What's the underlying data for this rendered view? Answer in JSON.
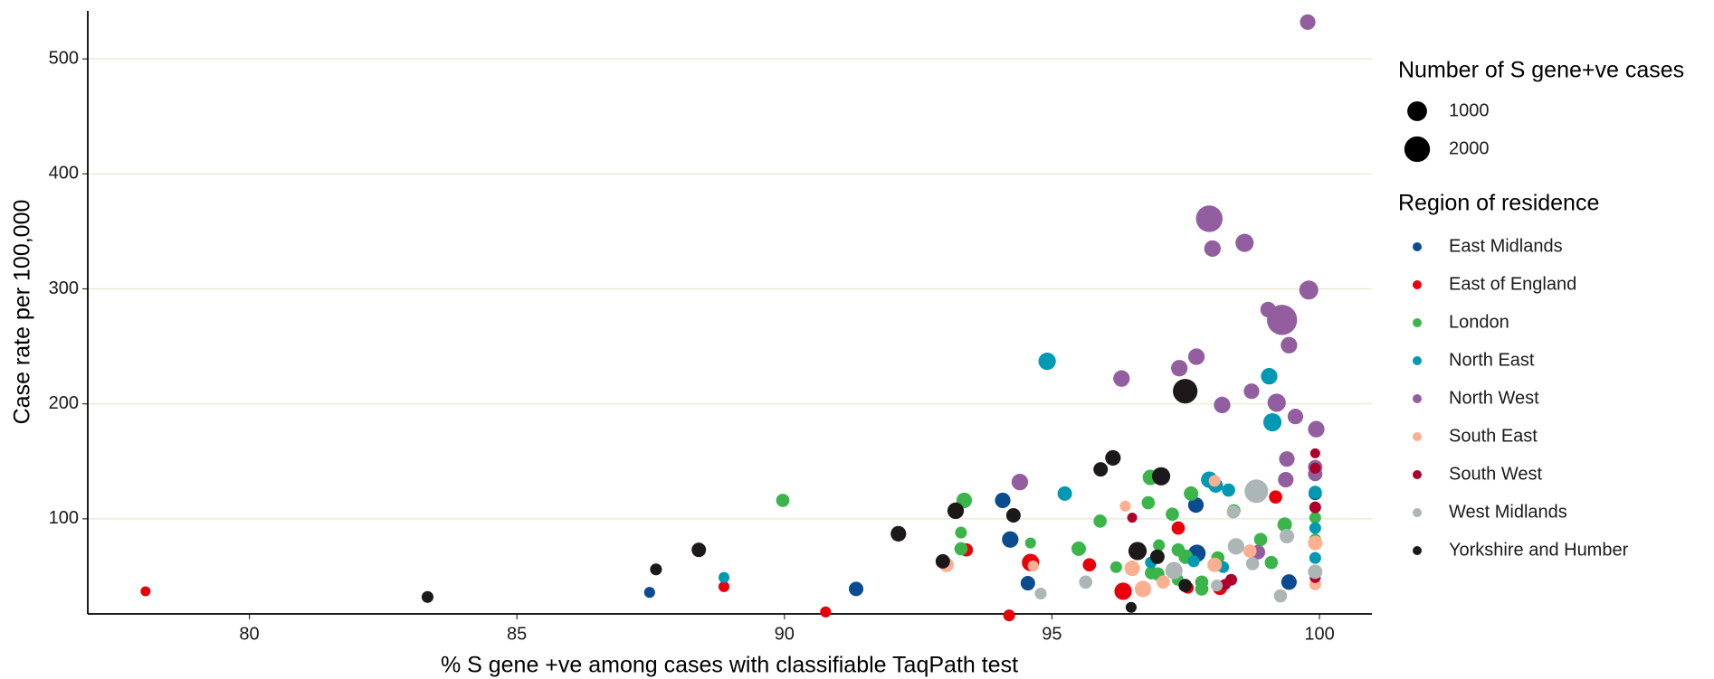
{
  "chart_data": {
    "type": "scatter",
    "x_label": "% S gene +ve among cases with classifiable TaqPath test",
    "y_label": "Case rate per 100,000",
    "xlim": [
      76.98,
      100.98
    ],
    "ylim": [
      17.3,
      541.8
    ],
    "xticks": [
      80,
      85,
      90,
      95,
      100
    ],
    "yticks": [
      100,
      200,
      300,
      400,
      500
    ],
    "grid": true,
    "size_legend": {
      "title": "Number of S gene+ve cases",
      "values": [
        1000,
        2000
      ]
    },
    "legend_title": "Region of residence",
    "series": [
      {
        "name": "East Midlands",
        "color": "#0b4b8f",
        "x": [
          94.08,
          94.22,
          94.55,
          91.34,
          87.48,
          97.69,
          97.71,
          99.43,
          99.92
        ],
        "values": [
          116,
          82,
          44,
          39,
          36,
          112,
          70,
          45,
          122
        ],
        "sizes": [
          500,
          600,
          400,
          400,
          150,
          500,
          700,
          500,
          300
        ]
      },
      {
        "name": "East of England",
        "color": "#e8000b",
        "x": [
          78.06,
          88.87,
          90.77,
          93.4,
          94.6,
          94.2,
          95.7,
          96.33,
          97.36,
          97.54,
          98.14,
          99.18
        ],
        "values": [
          37,
          41,
          19,
          73,
          62,
          16,
          60,
          37,
          92,
          40,
          40,
          119
        ],
        "sizes": [
          100,
          150,
          150,
          300,
          700,
          200,
          300,
          700,
          300,
          200,
          400,
          300
        ]
      },
      {
        "name": "London",
        "color": "#3bb54a",
        "x": [
          89.97,
          93.36,
          93.3,
          93.3,
          94.6,
          95.5,
          95.9,
          96.8,
          96.84,
          97.6,
          97.25,
          97.0,
          97.36,
          97.5,
          96.86,
          96.98,
          96.2,
          97.35,
          97.8,
          97.8,
          98.1,
          98.1,
          98.4,
          98.9,
          99.1,
          99.35,
          99.92,
          99.92
        ],
        "values": [
          116,
          116,
          88,
          74,
          79,
          74,
          98,
          114,
          136,
          122,
          104,
          77,
          73,
          67,
          53,
          52,
          58,
          47,
          45,
          39,
          66,
          60,
          107,
          82,
          62,
          95,
          101,
          82
        ],
        "sizes": [
          300,
          500,
          200,
          300,
          150,
          400,
          300,
          300,
          500,
          400,
          300,
          200,
          300,
          400,
          300,
          300,
          200,
          200,
          300,
          300,
          300,
          300,
          300,
          300,
          300,
          400,
          200,
          200
        ]
      },
      {
        "name": "North East",
        "color": "#0099b4",
        "x": [
          94.91,
          99.06,
          99.12,
          95.24,
          97.94,
          98.06,
          98.3,
          99.92,
          99.92,
          99.92,
          88.87,
          96.85,
          97.65,
          98.2
        ],
        "values": [
          237,
          224,
          184,
          122,
          134,
          129,
          125,
          123,
          92,
          66,
          49,
          62,
          63,
          58
        ],
        "sizes": [
          700,
          600,
          800,
          400,
          600,
          400,
          300,
          300,
          200,
          200,
          150,
          200,
          200,
          200
        ]
      },
      {
        "name": "North West",
        "color": "#925e9f",
        "x": [
          99.78,
          97.94,
          98.0,
          98.6,
          99.8,
          99.3,
          99.04,
          99.43,
          97.7,
          97.38,
          96.3,
          99.2,
          98.73,
          98.18,
          99.55,
          99.94,
          99.39,
          99.92,
          99.92,
          99.37,
          94.4,
          98.85
        ],
        "values": [
          532,
          361,
          335,
          340,
          299,
          273,
          282,
          251,
          241,
          231,
          222,
          201,
          211,
          199,
          189,
          178,
          152,
          145,
          139,
          134,
          132,
          71
        ],
        "sizes": [
          500,
          2200,
          600,
          800,
          900,
          3000,
          500,
          600,
          600,
          600,
          600,
          800,
          500,
          600,
          500,
          600,
          500,
          400,
          400,
          500,
          600,
          400
        ]
      },
      {
        "name": "South East",
        "color": "#fdaf91",
        "x": [
          93.03,
          94.65,
          96.37,
          96.5,
          96.7,
          97.08,
          98.04,
          98.04,
          98.7,
          99.92,
          99.92
        ],
        "values": [
          60,
          59,
          111,
          57,
          39,
          45,
          60,
          133,
          72,
          79,
          43
        ],
        "sizes": [
          400,
          150,
          150,
          500,
          600,
          300,
          400,
          200,
          300,
          400,
          200
        ]
      },
      {
        "name": "South West",
        "color": "#ad002a",
        "x": [
          96.5,
          99.92,
          99.92,
          99.92,
          99.92,
          98.35,
          98.24
        ],
        "values": [
          101,
          157,
          144,
          110,
          49,
          47,
          43
        ],
        "sizes": [
          100,
          100,
          150,
          200,
          150,
          200,
          150
        ]
      },
      {
        "name": "West Midlands",
        "color": "#adb6b6",
        "x": [
          98.82,
          97.28,
          98.44,
          98.75,
          99.39,
          99.92,
          99.27,
          95.63,
          94.79,
          98.39,
          98.08
        ],
        "values": [
          124,
          55,
          76,
          61,
          85,
          54,
          33,
          45,
          35,
          106,
          42
        ],
        "sizes": [
          1600,
          700,
          600,
          300,
          400,
          400,
          300,
          300,
          200,
          300,
          200
        ]
      },
      {
        "name": "Yorkshire and Humber",
        "color": "#1b1919",
        "x": [
          97.49,
          97.04,
          96.14,
          95.91,
          93.2,
          94.28,
          92.13,
          88.4,
          87.6,
          83.33,
          92.96,
          96.6,
          96.97,
          97.49,
          96.48
        ],
        "values": [
          211,
          137,
          153,
          143,
          107,
          103,
          87,
          73,
          56,
          32,
          63,
          72,
          67,
          42,
          23
        ],
        "sizes": [
          1800,
          800,
          500,
          400,
          600,
          400,
          500,
          400,
          200,
          200,
          400,
          800,
          400,
          300,
          150
        ]
      }
    ]
  }
}
